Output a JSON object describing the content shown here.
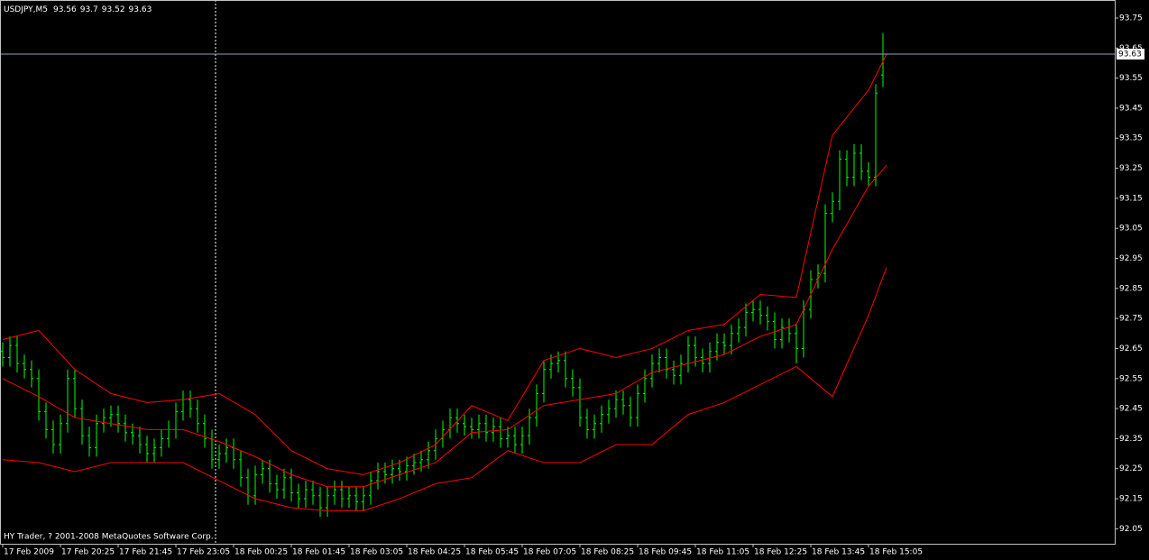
{
  "chart_data": {
    "type": "ohlc",
    "symbol": "USDJPY,M5",
    "footer_note": "HY Trader, ? 2001-2008 MetaQuotes Software Corp.",
    "bar_color": "#00ff00",
    "band_color": "#ff0000",
    "price_line_color": "#8fa3bf",
    "separator_x": 59,
    "grid": false,
    "xlim": [
      -0.75,
      308.5
    ],
    "ylim": [
      92.0,
      93.81
    ],
    "xticks": [
      {
        "value": 0,
        "label": "17 Feb 2009"
      },
      {
        "value": 16,
        "label": "17 Feb 20:25"
      },
      {
        "value": 32,
        "label": "17 Feb 21:45"
      },
      {
        "value": 48,
        "label": "17 Feb 23:05"
      },
      {
        "value": 64,
        "label": "18 Feb 00:25"
      },
      {
        "value": 80,
        "label": "18 Feb 01:45"
      },
      {
        "value": 96,
        "label": "18 Feb 03:05"
      },
      {
        "value": 112,
        "label": "18 Feb 04:25"
      },
      {
        "value": 128,
        "label": "18 Feb 05:45"
      },
      {
        "value": 144,
        "label": "18 Feb 07:05"
      },
      {
        "value": 160,
        "label": "18 Feb 08:25"
      },
      {
        "value": 176,
        "label": "18 Feb 09:45"
      },
      {
        "value": 192,
        "label": "18 Feb 11:05"
      },
      {
        "value": 208,
        "label": "18 Feb 12:25"
      },
      {
        "value": 224,
        "label": "18 Feb 13:45"
      },
      {
        "value": 240,
        "label": "18 Feb 15:05"
      }
    ],
    "yticks": [
      93.75,
      93.65,
      93.55,
      93.45,
      93.35,
      93.25,
      93.15,
      93.05,
      92.95,
      92.85,
      92.75,
      92.65,
      92.55,
      92.45,
      92.35,
      92.25,
      92.15,
      92.05
    ],
    "x": [
      0,
      2,
      4,
      6,
      8,
      10,
      12,
      14,
      16,
      18,
      20,
      22,
      24,
      26,
      28,
      30,
      32,
      34,
      36,
      38,
      40,
      42,
      44,
      46,
      48,
      50,
      52,
      54,
      56,
      58,
      60,
      62,
      64,
      66,
      68,
      70,
      72,
      74,
      76,
      78,
      80,
      82,
      84,
      86,
      88,
      90,
      92,
      94,
      96,
      98,
      100,
      102,
      104,
      106,
      108,
      110,
      112,
      114,
      116,
      118,
      120,
      122,
      124,
      126,
      128,
      130,
      132,
      134,
      136,
      138,
      140,
      142,
      144,
      146,
      148,
      150,
      152,
      154,
      156,
      158,
      160,
      162,
      164,
      166,
      168,
      170,
      172,
      174,
      176,
      178,
      180,
      182,
      184,
      186,
      188,
      190,
      192,
      194,
      196,
      198,
      200,
      202,
      204,
      206,
      208,
      210,
      212,
      214,
      216,
      218,
      220,
      222,
      224,
      226,
      228,
      230,
      232,
      234,
      236,
      238,
      240,
      242,
      244
    ],
    "open": [
      92.64,
      92.62,
      92.66,
      92.6,
      92.58,
      92.55,
      92.44,
      92.38,
      92.33,
      92.4,
      92.55,
      92.45,
      92.36,
      92.32,
      92.4,
      92.42,
      92.43,
      92.4,
      92.37,
      92.36,
      92.33,
      92.3,
      92.32,
      92.35,
      92.38,
      92.44,
      92.48,
      92.45,
      92.4,
      92.35,
      92.28,
      92.3,
      92.32,
      92.28,
      92.22,
      92.16,
      92.23,
      92.25,
      92.2,
      92.18,
      92.22,
      92.17,
      92.15,
      92.18,
      92.16,
      92.12,
      92.16,
      92.18,
      92.15,
      92.16,
      92.14,
      92.16,
      92.21,
      92.24,
      92.23,
      92.25,
      92.24,
      92.26,
      92.27,
      92.28,
      92.31,
      92.35,
      92.38,
      92.42,
      92.4,
      92.39,
      92.38,
      92.4,
      92.37,
      92.39,
      92.35,
      92.36,
      92.33,
      92.36,
      92.42,
      92.5,
      92.58,
      92.6,
      92.61,
      92.55,
      92.52,
      92.42,
      92.38,
      92.4,
      92.43,
      92.45,
      92.48,
      92.46,
      92.42,
      92.5,
      92.55,
      92.6,
      92.62,
      92.58,
      92.56,
      92.6,
      92.66,
      92.62,
      92.6,
      92.64,
      92.67,
      92.66,
      92.7,
      92.72,
      92.77,
      92.78,
      92.76,
      92.74,
      92.68,
      92.72,
      92.7,
      92.65,
      92.78,
      92.88,
      92.9,
      93.1,
      93.14,
      93.28,
      93.22,
      93.3,
      93.24,
      93.22,
      93.56
    ],
    "high": [
      92.67,
      92.69,
      92.69,
      92.63,
      92.61,
      92.58,
      92.47,
      92.41,
      92.43,
      92.58,
      92.58,
      92.48,
      92.39,
      92.43,
      92.45,
      92.46,
      92.46,
      92.43,
      92.4,
      92.39,
      92.36,
      92.35,
      92.38,
      92.41,
      92.47,
      92.51,
      92.51,
      92.48,
      92.43,
      92.38,
      92.33,
      92.35,
      92.35,
      92.31,
      92.25,
      92.26,
      92.28,
      92.28,
      92.23,
      92.25,
      92.25,
      92.2,
      92.21,
      92.21,
      92.19,
      92.19,
      92.21,
      92.21,
      92.19,
      92.19,
      92.19,
      92.24,
      92.27,
      92.27,
      92.28,
      92.28,
      92.29,
      92.3,
      92.31,
      92.34,
      92.38,
      92.41,
      92.45,
      92.45,
      92.43,
      92.42,
      92.43,
      92.43,
      92.42,
      92.42,
      92.39,
      92.39,
      92.39,
      92.45,
      92.53,
      92.61,
      92.63,
      92.64,
      92.64,
      92.58,
      92.55,
      92.45,
      92.43,
      92.46,
      92.48,
      92.51,
      92.51,
      92.49,
      92.53,
      92.58,
      92.63,
      92.65,
      92.65,
      92.61,
      92.63,
      92.69,
      92.69,
      92.65,
      92.67,
      92.7,
      92.7,
      92.73,
      92.75,
      92.8,
      92.81,
      92.81,
      92.79,
      92.77,
      92.75,
      92.75,
      92.73,
      92.81,
      92.91,
      92.93,
      93.13,
      93.17,
      93.31,
      93.31,
      93.33,
      93.33,
      93.27,
      93.53,
      93.7
    ],
    "low": [
      92.59,
      92.59,
      92.57,
      92.55,
      92.52,
      92.41,
      92.35,
      92.3,
      92.3,
      92.37,
      92.42,
      92.33,
      92.29,
      92.29,
      92.37,
      92.39,
      92.37,
      92.34,
      92.33,
      92.3,
      92.27,
      92.27,
      92.29,
      92.32,
      92.35,
      92.41,
      92.42,
      92.37,
      92.32,
      92.25,
      92.25,
      92.27,
      92.25,
      92.19,
      92.13,
      92.13,
      92.2,
      92.17,
      92.15,
      92.15,
      92.14,
      92.12,
      92.12,
      92.13,
      92.09,
      92.09,
      92.13,
      92.12,
      92.12,
      92.11,
      92.11,
      92.13,
      92.18,
      92.2,
      92.2,
      92.21,
      92.21,
      92.23,
      92.24,
      92.25,
      92.28,
      92.32,
      92.35,
      92.37,
      92.36,
      92.35,
      92.35,
      92.34,
      92.34,
      92.32,
      92.32,
      92.3,
      92.3,
      92.33,
      92.39,
      92.47,
      92.55,
      92.57,
      92.52,
      92.49,
      92.39,
      92.35,
      92.35,
      92.37,
      92.4,
      92.42,
      92.43,
      92.39,
      92.39,
      92.47,
      92.52,
      92.57,
      92.55,
      92.53,
      92.53,
      92.57,
      92.59,
      92.57,
      92.57,
      92.61,
      92.63,
      92.63,
      92.67,
      92.69,
      92.74,
      92.73,
      92.71,
      92.65,
      92.65,
      92.67,
      92.6,
      92.62,
      92.75,
      92.85,
      92.87,
      93.07,
      93.11,
      93.19,
      93.19,
      93.21,
      93.19,
      93.19,
      93.52
    ],
    "close": [
      92.62,
      92.66,
      92.6,
      92.58,
      92.55,
      92.44,
      92.38,
      92.33,
      92.4,
      92.55,
      92.45,
      92.36,
      92.32,
      92.4,
      92.42,
      92.43,
      92.4,
      92.37,
      92.36,
      92.33,
      92.3,
      92.32,
      92.35,
      92.38,
      92.44,
      92.48,
      92.45,
      92.4,
      92.35,
      92.28,
      92.3,
      92.32,
      92.28,
      92.22,
      92.16,
      92.23,
      92.25,
      92.2,
      92.18,
      92.22,
      92.17,
      92.15,
      92.18,
      92.16,
      92.12,
      92.16,
      92.18,
      92.15,
      92.16,
      92.14,
      92.16,
      92.21,
      92.24,
      92.23,
      92.25,
      92.24,
      92.26,
      92.27,
      92.28,
      92.31,
      92.35,
      92.38,
      92.42,
      92.4,
      92.39,
      92.38,
      92.4,
      92.37,
      92.39,
      92.35,
      92.36,
      92.33,
      92.36,
      92.42,
      92.5,
      92.58,
      92.6,
      92.61,
      92.55,
      92.52,
      92.42,
      92.38,
      92.4,
      92.43,
      92.45,
      92.48,
      92.46,
      92.42,
      92.5,
      92.55,
      92.6,
      92.62,
      92.58,
      92.56,
      92.6,
      92.66,
      92.62,
      92.6,
      92.64,
      92.67,
      92.66,
      92.7,
      92.72,
      92.77,
      92.78,
      92.76,
      92.74,
      92.68,
      92.72,
      92.7,
      92.65,
      92.78,
      92.88,
      92.9,
      93.1,
      93.14,
      93.28,
      93.22,
      93.3,
      93.24,
      93.22,
      93.5,
      93.63
    ],
    "band_x": [
      0,
      10,
      20,
      30,
      40,
      50,
      60,
      70,
      80,
      90,
      100,
      110,
      120,
      130,
      140,
      150,
      160,
      170,
      180,
      190,
      200,
      210,
      220,
      230,
      240,
      245
    ],
    "band_upper": [
      92.68,
      92.71,
      92.58,
      92.5,
      92.47,
      92.48,
      92.5,
      92.43,
      92.31,
      92.25,
      92.23,
      92.27,
      92.33,
      92.46,
      92.41,
      92.61,
      92.65,
      92.62,
      92.65,
      92.71,
      92.73,
      92.83,
      92.82,
      93.36,
      93.51,
      93.63
    ],
    "band_middle": [
      92.55,
      92.49,
      92.42,
      92.4,
      92.38,
      92.38,
      92.34,
      92.29,
      92.23,
      92.19,
      92.19,
      92.23,
      92.27,
      92.37,
      92.38,
      92.46,
      92.48,
      92.5,
      92.57,
      92.6,
      92.63,
      92.69,
      92.73,
      92.98,
      93.19,
      93.26
    ],
    "band_lower": [
      92.28,
      92.27,
      92.24,
      92.27,
      92.27,
      92.27,
      92.21,
      92.15,
      92.12,
      92.11,
      92.11,
      92.15,
      92.2,
      92.22,
      92.31,
      92.27,
      92.27,
      92.33,
      92.33,
      92.43,
      92.47,
      92.53,
      92.59,
      92.49,
      92.76,
      92.92
    ]
  }
}
